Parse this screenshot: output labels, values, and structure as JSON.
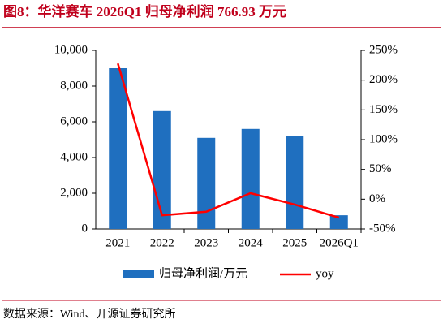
{
  "chart_data": {
    "type": "bar-line",
    "title": "图8：华洋赛车 2026Q1 归母净利润 766.93 万元",
    "categories": [
      "2021",
      "2022",
      "2023",
      "2024",
      "2025",
      "2026Q1"
    ],
    "series": [
      {
        "name": "归母净利润/万元",
        "type": "bar",
        "color": "#1f6fbf",
        "values": [
          9000,
          6600,
          5100,
          5600,
          5200,
          767
        ]
      },
      {
        "name": "yoy",
        "type": "line",
        "axis": "y2",
        "color": "#ff0000",
        "values": [
          228,
          -27,
          -21,
          10,
          -9,
          -31
        ]
      }
    ],
    "ylim": [
      0,
      10000
    ],
    "yticks": [
      0,
      {
        "value": 2000,
        "label": "2,000"
      },
      {
        "value": 4000,
        "label": "4,000"
      },
      {
        "value": 6000,
        "label": "6,000"
      },
      {
        "value": 8000,
        "label": "8,000"
      },
      {
        "value": 10000,
        "label": "10,000"
      }
    ],
    "y2lim": [
      -50,
      250
    ],
    "y2ticks": [
      {
        "value": -50,
        "label": "-50%"
      },
      {
        "value": 0,
        "label": "0%"
      },
      {
        "value": 50,
        "label": "50%"
      },
      {
        "value": 100,
        "label": "100%"
      },
      {
        "value": 150,
        "label": "150%"
      },
      {
        "value": 200,
        "label": "200%"
      },
      {
        "value": 250,
        "label": "250%"
      }
    ],
    "grid": false,
    "source": "数据来源：Wind、开源证券研究所"
  }
}
